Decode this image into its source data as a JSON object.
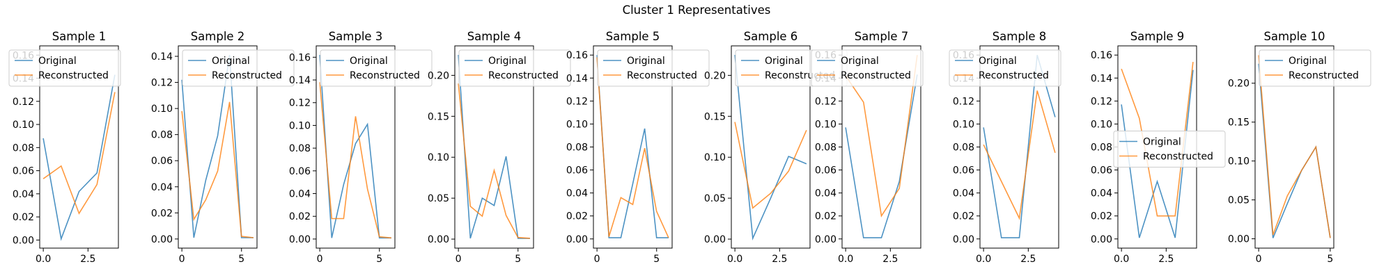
{
  "chart_data": {
    "type": "line",
    "title": "Cluster 1 Representatives",
    "colors": {
      "Original": "#1f77b4",
      "Reconstructed": "#ff7f0e"
    },
    "panels": [
      {
        "title": "Sample 1",
        "ylim": [
          -0.007,
          0.168
        ],
        "xlim": [
          -0.2,
          4.2
        ],
        "yticks": [
          "0.00",
          "0.02",
          "0.04",
          "0.06",
          "0.08",
          "0.10",
          "0.12",
          "0.14",
          "0.16"
        ],
        "xticks": [
          "0.0",
          "2.5"
        ],
        "xtick_values": [
          0,
          2.5
        ],
        "legend": "upper-left",
        "series": [
          {
            "name": "Original",
            "x": [
              0,
              1,
              2,
              3,
              4
            ],
            "values": [
              0.088,
              0.001,
              0.042,
              0.058,
              0.143
            ]
          },
          {
            "name": "Reconstructed",
            "x": [
              0,
              1,
              2,
              3,
              4
            ],
            "values": [
              0.053,
              0.064,
              0.023,
              0.048,
              0.128
            ]
          }
        ]
      },
      {
        "title": "Sample 2",
        "ylim": [
          -0.007,
          0.148
        ],
        "xlim": [
          -0.3,
          6.3
        ],
        "yticks": [
          "0.00",
          "0.02",
          "0.04",
          "0.06",
          "0.08",
          "0.10",
          "0.12",
          "0.14"
        ],
        "xticks": [
          "0",
          "5"
        ],
        "xtick_values": [
          0,
          5
        ],
        "legend": "upper-right",
        "series": [
          {
            "name": "Original",
            "x": [
              0,
              1,
              2,
              3,
              4,
              5,
              6
            ],
            "values": [
              0.122,
              0.001,
              0.045,
              0.079,
              0.141,
              0.001,
              0.001
            ]
          },
          {
            "name": "Reconstructed",
            "x": [
              0,
              1,
              2,
              3,
              4,
              5,
              6
            ],
            "values": [
              0.098,
              0.015,
              0.03,
              0.052,
              0.105,
              0.002,
              0.001
            ]
          }
        ]
      },
      {
        "title": "Sample 3",
        "ylim": [
          -0.008,
          0.17
        ],
        "xlim": [
          -0.3,
          6.3
        ],
        "yticks": [
          "0.00",
          "0.02",
          "0.04",
          "0.06",
          "0.08",
          "0.10",
          "0.12",
          "0.14",
          "0.16"
        ],
        "xticks": [
          "0",
          "5"
        ],
        "xtick_values": [
          0,
          5
        ],
        "legend": "upper-right",
        "series": [
          {
            "name": "Original",
            "x": [
              0,
              1,
              2,
              3,
              4,
              5,
              6
            ],
            "values": [
              0.162,
              0.001,
              0.048,
              0.084,
              0.101,
              0.001,
              0.001
            ]
          },
          {
            "name": "Reconstructed",
            "x": [
              0,
              1,
              2,
              3,
              4,
              5,
              6
            ],
            "values": [
              0.138,
              0.018,
              0.018,
              0.108,
              0.044,
              0.002,
              0.001
            ]
          }
        ]
      },
      {
        "title": "Sample 4",
        "ylim": [
          -0.011,
          0.236
        ],
        "xlim": [
          -0.3,
          6.3
        ],
        "yticks": [
          "0.00",
          "0.05",
          "0.10",
          "0.15",
          "0.20"
        ],
        "xticks": [
          "0",
          "5"
        ],
        "xtick_values": [
          0,
          5
        ],
        "legend": "upper-right",
        "series": [
          {
            "name": "Original",
            "x": [
              0,
              1,
              2,
              3,
              4,
              5,
              6
            ],
            "values": [
              0.225,
              0.001,
              0.05,
              0.041,
              0.101,
              0.001,
              0.001
            ]
          },
          {
            "name": "Reconstructed",
            "x": [
              0,
              1,
              2,
              3,
              4,
              5,
              6
            ],
            "values": [
              0.19,
              0.04,
              0.028,
              0.084,
              0.029,
              0.002,
              0.001
            ]
          }
        ]
      },
      {
        "title": "Sample 5",
        "ylim": [
          -0.008,
          0.168
        ],
        "xlim": [
          -0.3,
          6.3
        ],
        "yticks": [
          "0.00",
          "0.02",
          "0.04",
          "0.06",
          "0.08",
          "0.10",
          "0.12",
          "0.14",
          "0.16"
        ],
        "xticks": [
          "0",
          "5"
        ],
        "xtick_values": [
          0,
          5
        ],
        "legend": "upper-right",
        "series": [
          {
            "name": "Original",
            "x": [
              0,
              1,
              2,
              3,
              4,
              5,
              6
            ],
            "values": [
              0.16,
              0.001,
              0.001,
              0.048,
              0.096,
              0.001,
              0.001
            ]
          },
          {
            "name": "Reconstructed",
            "x": [
              0,
              1,
              2,
              3,
              4,
              5,
              6
            ],
            "values": [
              0.158,
              0.002,
              0.036,
              0.03,
              0.079,
              0.024,
              0.001
            ]
          }
        ]
      },
      {
        "title": "Sample 6",
        "ylim": [
          -0.011,
          0.236
        ],
        "xlim": [
          -0.2,
          4.2
        ],
        "yticks": [
          "0.00",
          "0.05",
          "0.10",
          "0.15",
          "0.20"
        ],
        "xticks": [
          "0.0",
          "2.5"
        ],
        "xtick_values": [
          0,
          2.5
        ],
        "legend": "upper-right",
        "series": [
          {
            "name": "Original",
            "x": [
              0,
              1,
              2,
              3,
              4
            ],
            "values": [
              0.225,
              0.001,
              0.05,
              0.101,
              0.092
            ]
          },
          {
            "name": "Reconstructed",
            "x": [
              0,
              1,
              2,
              3,
              4
            ],
            "values": [
              0.143,
              0.038,
              0.056,
              0.083,
              0.133
            ]
          }
        ]
      },
      {
        "title": "Sample 7",
        "ylim": [
          -0.008,
          0.168
        ],
        "xlim": [
          -0.2,
          4.2
        ],
        "yticks": [
          "0.00",
          "0.02",
          "0.04",
          "0.06",
          "0.08",
          "0.10",
          "0.12",
          "0.14",
          "0.16"
        ],
        "xticks": [
          "0.0",
          "2.5"
        ],
        "xtick_values": [
          0,
          2.5
        ],
        "legend": "upper-left",
        "series": [
          {
            "name": "Original",
            "x": [
              0,
              1,
              2,
              3,
              4
            ],
            "values": [
              0.097,
              0.001,
              0.001,
              0.05,
              0.143
            ]
          },
          {
            "name": "Reconstructed",
            "x": [
              0,
              1,
              2,
              3,
              4
            ],
            "values": [
              0.142,
              0.119,
              0.02,
              0.044,
              0.16
            ]
          }
        ]
      },
      {
        "title": "Sample 8",
        "ylim": [
          -0.008,
          0.168
        ],
        "xlim": [
          -0.2,
          4.2
        ],
        "yticks": [
          "0.00",
          "0.02",
          "0.04",
          "0.06",
          "0.08",
          "0.10",
          "0.12",
          "0.14",
          "0.16"
        ],
        "xticks": [
          "0.0",
          "2.5"
        ],
        "xtick_values": [
          0,
          2.5
        ],
        "legend": "upper-left",
        "series": [
          {
            "name": "Original",
            "x": [
              0,
              1,
              2,
              3,
              4
            ],
            "values": [
              0.097,
              0.001,
              0.001,
              0.16,
              0.106
            ]
          },
          {
            "name": "Reconstructed",
            "x": [
              0,
              1,
              2,
              3,
              4
            ],
            "values": [
              0.082,
              0.05,
              0.018,
              0.129,
              0.075
            ]
          }
        ]
      },
      {
        "title": "Sample 9",
        "ylim": [
          -0.008,
          0.168
        ],
        "xlim": [
          -0.2,
          4.2
        ],
        "yticks": [
          "0.00",
          "0.02",
          "0.04",
          "0.06",
          "0.08",
          "0.10",
          "0.12",
          "0.14",
          "0.16"
        ],
        "xticks": [
          "0.0",
          "2.5"
        ],
        "xtick_values": [
          0,
          2.5
        ],
        "legend": "center-left",
        "series": [
          {
            "name": "Original",
            "x": [
              0,
              1,
              2,
              3,
              4
            ],
            "values": [
              0.117,
              0.001,
              0.05,
              0.001,
              0.147
            ]
          },
          {
            "name": "Reconstructed",
            "x": [
              0,
              1,
              2,
              3,
              4
            ],
            "values": [
              0.148,
              0.105,
              0.02,
              0.02,
              0.154
            ]
          }
        ]
      },
      {
        "title": "Sample 10",
        "ylim": [
          -0.012,
          0.248
        ],
        "xlim": [
          -0.25,
          5.25
        ],
        "yticks": [
          "0.00",
          "0.05",
          "0.10",
          "0.15",
          "0.20"
        ],
        "xticks": [
          "0",
          "5"
        ],
        "xtick_values": [
          0,
          5
        ],
        "legend": "upper-right",
        "series": [
          {
            "name": "Original",
            "x": [
              0,
              1,
              2,
              3,
              4,
              5
            ],
            "values": [
              0.225,
              0.001,
              0.045,
              0.088,
              0.118,
              0.001
            ]
          },
          {
            "name": "Reconstructed",
            "x": [
              0,
              1,
              2,
              3,
              4,
              5
            ],
            "values": [
              0.236,
              0.005,
              0.055,
              0.088,
              0.118,
              0.001
            ]
          }
        ]
      }
    ]
  }
}
